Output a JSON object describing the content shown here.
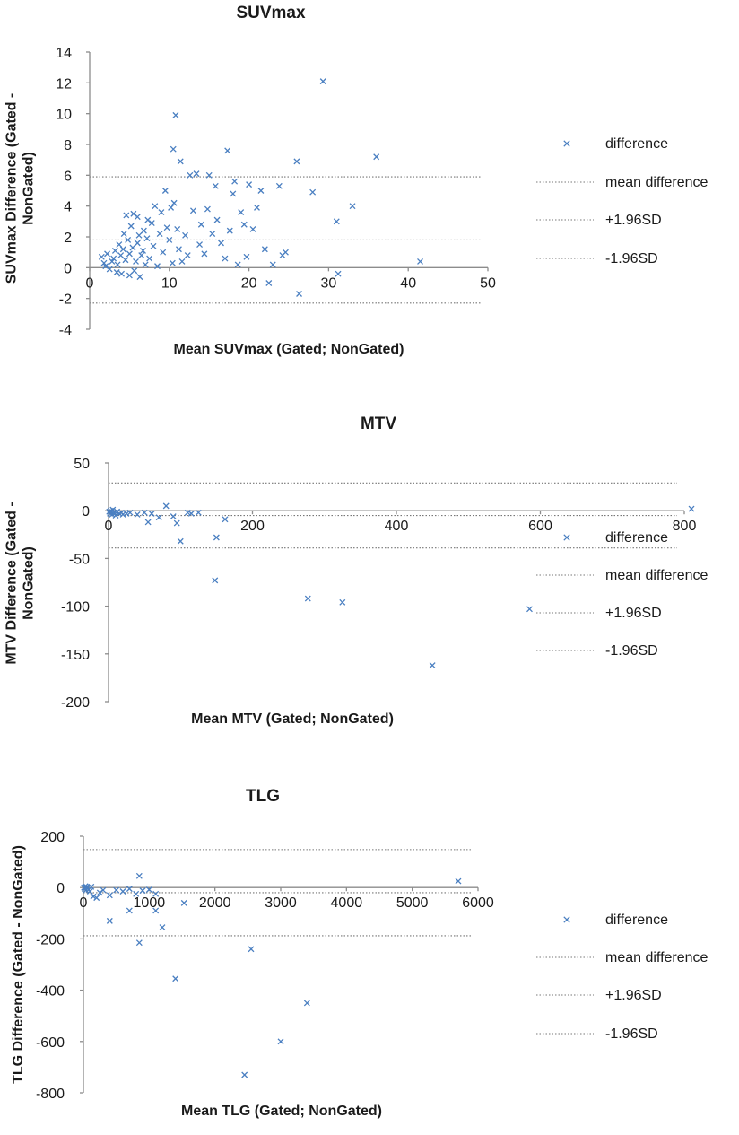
{
  "colors": {
    "marker": "#4a7fc1",
    "axis": "#8c8c8c",
    "reference_line": "#777777",
    "text": "#1a1a1a"
  },
  "chart_data": [
    {
      "type": "scatter",
      "title": "SUVmax",
      "xlabel": "Mean SUVmax (Gated; NonGated)",
      "ylabel": "SUVmax Difference (Gated - NonGated)",
      "ylabel_lines": [
        "SUVmax Difference (Gated -",
        "NonGated)"
      ],
      "xlim": [
        0,
        50
      ],
      "ylim": [
        -4,
        14
      ],
      "xticks": [
        0,
        10,
        20,
        30,
        40,
        50
      ],
      "yticks": [
        -4,
        -2,
        0,
        2,
        4,
        6,
        8,
        10,
        12,
        14
      ],
      "legend": [
        "difference",
        "mean difference",
        "+1.96SD",
        "-1.96SD"
      ],
      "reference_lines": {
        "mean_difference": 1.8,
        "plus_1_96SD": 5.9,
        "minus_1_96SD": -2.3
      },
      "points": [
        [
          1.5,
          0.7
        ],
        [
          1.8,
          0.3
        ],
        [
          2,
          0.1
        ],
        [
          2.2,
          0.9
        ],
        [
          2.5,
          -0.1
        ],
        [
          2.8,
          0.4
        ],
        [
          3,
          0.6
        ],
        [
          3.2,
          1.1
        ],
        [
          3.4,
          -0.3
        ],
        [
          3.5,
          0.2
        ],
        [
          3.7,
          1.5
        ],
        [
          3.9,
          0.8
        ],
        [
          4,
          -0.4
        ],
        [
          4.2,
          1.2
        ],
        [
          4.3,
          2.2
        ],
        [
          4.5,
          0.5
        ],
        [
          4.6,
          3.4
        ],
        [
          4.8,
          1.8
        ],
        [
          5,
          -0.5
        ],
        [
          5,
          0.9
        ],
        [
          5.2,
          2.7
        ],
        [
          5.4,
          1.3
        ],
        [
          5.5,
          3.5
        ],
        [
          5.6,
          -0.2
        ],
        [
          5.8,
          0.4
        ],
        [
          6,
          1.6
        ],
        [
          6,
          3.3
        ],
        [
          6.2,
          2.1
        ],
        [
          6.3,
          -0.6
        ],
        [
          6.5,
          0.8
        ],
        [
          6.7,
          1.1
        ],
        [
          6.8,
          2.4
        ],
        [
          7,
          0.2
        ],
        [
          7.2,
          1.9
        ],
        [
          7.3,
          3.1
        ],
        [
          7.5,
          0.6
        ],
        [
          7.8,
          2.9
        ],
        [
          8,
          1.4
        ],
        [
          8.2,
          4.0
        ],
        [
          8.5,
          0.1
        ],
        [
          8.8,
          2.2
        ],
        [
          9,
          3.6
        ],
        [
          9.2,
          1.0
        ],
        [
          9.5,
          5.0
        ],
        [
          9.7,
          2.6
        ],
        [
          10,
          1.8
        ],
        [
          10.2,
          3.9
        ],
        [
          10.4,
          0.3
        ],
        [
          10.5,
          7.7
        ],
        [
          10.6,
          4.2
        ],
        [
          10.8,
          9.9
        ],
        [
          11,
          2.5
        ],
        [
          11.2,
          1.2
        ],
        [
          11.4,
          6.9
        ],
        [
          11.6,
          0.4
        ],
        [
          12,
          2.1
        ],
        [
          12.3,
          0.8
        ],
        [
          12.6,
          6.0
        ],
        [
          13,
          3.7
        ],
        [
          13.4,
          6.1
        ],
        [
          13.8,
          1.5
        ],
        [
          14,
          2.8
        ],
        [
          14.4,
          0.9
        ],
        [
          14.8,
          3.8
        ],
        [
          15,
          6.0
        ],
        [
          15.4,
          2.2
        ],
        [
          15.8,
          5.3
        ],
        [
          16,
          3.1
        ],
        [
          16.5,
          1.6
        ],
        [
          17,
          0.6
        ],
        [
          17.3,
          7.6
        ],
        [
          17.6,
          2.4
        ],
        [
          18,
          4.8
        ],
        [
          18.2,
          5.6
        ],
        [
          18.6,
          0.2
        ],
        [
          19,
          3.6
        ],
        [
          19.4,
          2.8
        ],
        [
          19.7,
          0.7
        ],
        [
          20,
          5.4
        ],
        [
          20.5,
          2.5
        ],
        [
          21,
          3.9
        ],
        [
          21.5,
          5.0
        ],
        [
          22,
          1.2
        ],
        [
          22.5,
          -1.0
        ],
        [
          23,
          0.2
        ],
        [
          23.8,
          5.3
        ],
        [
          24.2,
          0.8
        ],
        [
          24.6,
          1.0
        ],
        [
          26,
          6.9
        ],
        [
          26.3,
          -1.7
        ],
        [
          28,
          4.9
        ],
        [
          29.3,
          12.1
        ],
        [
          31,
          3.0
        ],
        [
          31.2,
          -0.4
        ],
        [
          33,
          4.0
        ],
        [
          36,
          7.2
        ],
        [
          41.5,
          0.4
        ]
      ]
    },
    {
      "type": "scatter",
      "title": "MTV",
      "xlabel": "Mean MTV (Gated; NonGated)",
      "ylabel": "MTV Difference (Gated - NonGated)",
      "ylabel_lines": [
        "MTV Difference (Gated -",
        "NonGated)"
      ],
      "xlim": [
        0,
        800
      ],
      "ylim": [
        -200,
        50
      ],
      "xticks": [
        0,
        200,
        400,
        600,
        800
      ],
      "yticks": [
        -200,
        -150,
        -100,
        -50,
        0,
        50
      ],
      "legend": [
        "difference",
        "mean difference",
        "+1.96SD",
        "-1.96SD"
      ],
      "reference_lines": {
        "mean_difference": -5,
        "plus_1_96SD": 29,
        "minus_1_96SD": -39
      },
      "points": [
        [
          1,
          -1
        ],
        [
          2,
          -3
        ],
        [
          3,
          0
        ],
        [
          4,
          -2
        ],
        [
          5,
          -4
        ],
        [
          6,
          1
        ],
        [
          8,
          -2
        ],
        [
          10,
          -5
        ],
        [
          12,
          -1
        ],
        [
          15,
          -3
        ],
        [
          18,
          -2
        ],
        [
          20,
          -4
        ],
        [
          25,
          -3
        ],
        [
          30,
          -2
        ],
        [
          40,
          -4
        ],
        [
          50,
          -2
        ],
        [
          60,
          -3
        ],
        [
          70,
          -7
        ],
        [
          55,
          -12
        ],
        [
          80,
          5
        ],
        [
          90,
          -6
        ],
        [
          95,
          -13
        ],
        [
          100,
          -32
        ],
        [
          110,
          -2
        ],
        [
          115,
          -3
        ],
        [
          125,
          -2
        ],
        [
          148,
          -73
        ],
        [
          150,
          -28
        ],
        [
          162,
          -9
        ],
        [
          277,
          -92
        ],
        [
          325,
          -96
        ],
        [
          450,
          -162
        ],
        [
          585,
          -103
        ],
        [
          810,
          2
        ]
      ]
    },
    {
      "type": "scatter",
      "title": "TLG",
      "xlabel": "Mean TLG  (Gated; NonGated)",
      "ylabel": "TLG  Difference (Gated - NonGated)",
      "ylabel_lines": [
        "TLG  Difference (Gated - NonGated)"
      ],
      "xlim": [
        0,
        6000
      ],
      "ylim": [
        -800,
        200
      ],
      "xticks": [
        0,
        1000,
        2000,
        3000,
        4000,
        5000,
        6000
      ],
      "yticks": [
        -800,
        -600,
        -400,
        -200,
        0,
        200
      ],
      "legend": [
        "difference",
        "mean difference",
        "+1.96SD",
        "-1.96SD"
      ],
      "reference_lines": {
        "mean_difference": -20,
        "plus_1_96SD": 148,
        "minus_1_96SD": -188
      },
      "points": [
        [
          10,
          0
        ],
        [
          20,
          -5
        ],
        [
          30,
          5
        ],
        [
          40,
          -10
        ],
        [
          50,
          2
        ],
        [
          60,
          -2
        ],
        [
          80,
          -8
        ],
        [
          100,
          -15
        ],
        [
          120,
          3
        ],
        [
          150,
          -35
        ],
        [
          200,
          -40
        ],
        [
          250,
          -20
        ],
        [
          300,
          -10
        ],
        [
          400,
          -30
        ],
        [
          500,
          -10
        ],
        [
          600,
          -15
        ],
        [
          700,
          -5
        ],
        [
          800,
          -25
        ],
        [
          900,
          -12
        ],
        [
          1000,
          -8
        ],
        [
          1100,
          -25
        ],
        [
          400,
          -130
        ],
        [
          700,
          -90
        ],
        [
          850,
          -215
        ],
        [
          1100,
          -90
        ],
        [
          1200,
          -155
        ],
        [
          850,
          45
        ],
        [
          1530,
          -60
        ],
        [
          1400,
          -355
        ],
        [
          2550,
          -240
        ],
        [
          2450,
          -730
        ],
        [
          3000,
          -600
        ],
        [
          3400,
          -450
        ],
        [
          5700,
          25
        ]
      ]
    }
  ]
}
